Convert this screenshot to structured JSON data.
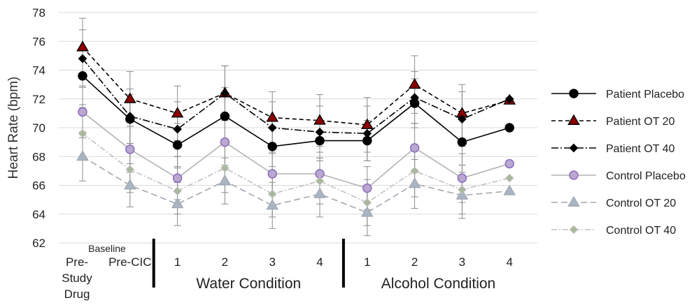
{
  "chart_data": {
    "type": "line",
    "ylabel": "Heart Rate (bpm)",
    "ylim": [
      62,
      78
    ],
    "yticks": [
      62,
      64,
      66,
      68,
      70,
      72,
      74,
      76,
      78
    ],
    "grid": true,
    "legend_position": "right",
    "categories": [
      "Pre-Study Drug",
      "Pre-CIC",
      "1",
      "2",
      "3",
      "4",
      "1",
      "2",
      "3",
      "4"
    ],
    "category_labels": [
      {
        "lines": [
          "Pre-",
          "Study",
          "Drug"
        ]
      },
      {
        "lines": [
          "Pre-CIC"
        ]
      },
      {
        "lines": [
          "1"
        ]
      },
      {
        "lines": [
          "2"
        ]
      },
      {
        "lines": [
          "3"
        ]
      },
      {
        "lines": [
          "4"
        ]
      },
      {
        "lines": [
          "1"
        ]
      },
      {
        "lines": [
          "2"
        ]
      },
      {
        "lines": [
          "3"
        ]
      },
      {
        "lines": [
          "4"
        ]
      }
    ],
    "group_labels": [
      {
        "label": "Baseline",
        "from": 0,
        "to": 1
      },
      {
        "label": "Water Condition",
        "from": 2,
        "to": 5
      },
      {
        "label": "Alcohol Condition",
        "from": 6,
        "to": 9
      }
    ],
    "series": [
      {
        "name": "Patient Placebo",
        "values": [
          73.6,
          70.6,
          68.8,
          70.8,
          68.7,
          69.1,
          69.1,
          71.7,
          69.0,
          70.0
        ],
        "error": [
          2.0,
          1.7,
          1.5,
          2.0,
          1.4,
          1.4,
          1.4,
          1.7,
          1.6,
          0.0
        ],
        "color": "#000000",
        "fill": "#000000",
        "marker": "circle",
        "dash": "solid"
      },
      {
        "name": "Patient OT 20",
        "values": [
          75.6,
          72.0,
          71.0,
          72.4,
          70.7,
          70.5,
          70.2,
          73.0,
          71.0,
          71.9
        ],
        "error": [
          2.0,
          1.9,
          1.9,
          1.9,
          1.8,
          1.8,
          1.9,
          2.0,
          2.0,
          0.0
        ],
        "color": "#000000",
        "fill": "#8b0000",
        "marker": "triangle",
        "dash": "6,4"
      },
      {
        "name": "Patient OT 40",
        "values": [
          74.8,
          70.8,
          69.9,
          72.4,
          70.0,
          69.7,
          69.6,
          72.1,
          70.6,
          72.0
        ],
        "error": [
          2.0,
          1.9,
          1.9,
          1.9,
          1.8,
          1.8,
          1.9,
          1.8,
          1.9,
          0.0
        ],
        "color": "#000000",
        "fill": "#000000",
        "marker": "diamond",
        "dash": "10,3,2,3"
      },
      {
        "name": "Control Placebo",
        "values": [
          71.1,
          68.5,
          66.5,
          69.0,
          66.8,
          66.8,
          65.8,
          68.6,
          66.5,
          67.5
        ],
        "error": [
          1.8,
          1.6,
          1.5,
          1.6,
          1.5,
          1.5,
          1.5,
          1.7,
          1.7,
          0.0
        ],
        "color": "#b3b3b3",
        "fill": "#b9a8d0",
        "marker": "circle",
        "dash": "solid"
      },
      {
        "name": "Control OT 20",
        "values": [
          68.0,
          66.0,
          64.7,
          66.3,
          64.6,
          65.4,
          64.1,
          66.1,
          65.3,
          65.6
        ],
        "error": [
          1.7,
          1.5,
          1.5,
          1.6,
          1.6,
          1.6,
          1.6,
          1.7,
          1.6,
          0.0
        ],
        "color": "#a0a8b2",
        "fill": "#a9b5c3",
        "marker": "triangle",
        "dash": "9,5"
      },
      {
        "name": "Control OT 40",
        "values": [
          69.6,
          67.1,
          65.6,
          67.2,
          65.4,
          66.3,
          64.8,
          67.0,
          65.7,
          66.5
        ],
        "error": [
          1.8,
          1.6,
          1.6,
          1.7,
          1.6,
          1.6,
          1.6,
          1.8,
          1.7,
          0.0
        ],
        "color": "#c0c0c0",
        "fill": "#a8b99a",
        "marker": "diamond",
        "dash": "8,3,2,3"
      }
    ]
  }
}
